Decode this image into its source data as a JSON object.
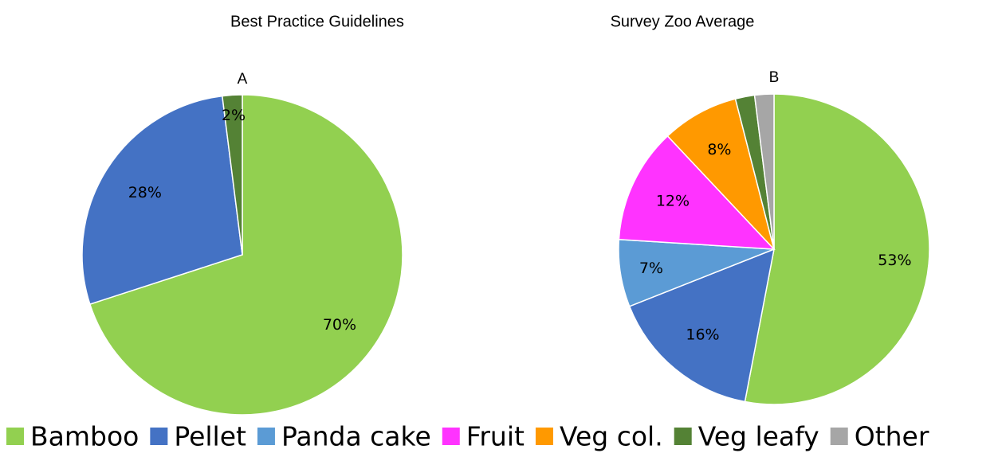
{
  "chart_data": [
    {
      "type": "pie",
      "title": "Best Practice Guidelines",
      "label": "A",
      "categories": [
        "Bamboo",
        "Pellet",
        "Veg leafy"
      ],
      "values": [
        70,
        28,
        2
      ],
      "value_labels": [
        "70%",
        "28%",
        "2%"
      ],
      "colors": [
        "#92d050",
        "#4472c4",
        "#548235"
      ]
    },
    {
      "type": "pie",
      "title": "Survey Zoo Average",
      "label": "B",
      "categories": [
        "Bamboo",
        "Pellet",
        "Panda cake",
        "Fruit",
        "Veg col.",
        "Veg leafy",
        "Other"
      ],
      "values": [
        53,
        16,
        7,
        12,
        8,
        2,
        2
      ],
      "value_labels": [
        "53%",
        "16%",
        "7%",
        "12%",
        "8%",
        null,
        null
      ],
      "colors": [
        "#92d050",
        "#4472c4",
        "#5b9bd5",
        "#ff33ff",
        "#ff9900",
        "#548235",
        "#a6a6a6"
      ]
    }
  ]
}
